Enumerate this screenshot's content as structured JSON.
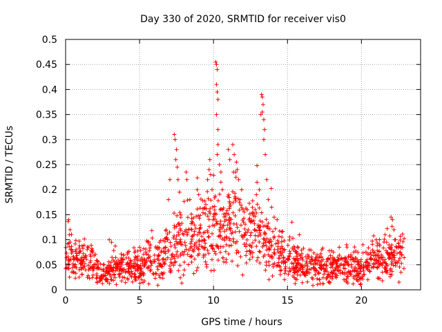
{
  "chart_data": {
    "type": "scatter",
    "title": "Day 330 of 2020, SRMTID for receiver vis0",
    "xlabel": "GPS time / hours",
    "ylabel": "SRMTID / TECUs",
    "xlim": [
      0,
      24
    ],
    "ylim": [
      0,
      0.5
    ],
    "xticks": [
      0,
      5,
      10,
      15,
      20
    ],
    "yticks": [
      0,
      0.05,
      0.1,
      0.15,
      0.2,
      0.25,
      0.3,
      0.35,
      0.4,
      0.45,
      0.5
    ],
    "grid": true,
    "marker": "+",
    "color": "#ff0000",
    "series": [
      {
        "name": "SRMTID",
        "trend": [
          [
            0.0,
            0.055
          ],
          [
            0.3,
            0.08
          ],
          [
            0.6,
            0.055
          ],
          [
            1.0,
            0.06
          ],
          [
            1.5,
            0.06
          ],
          [
            2.0,
            0.045
          ],
          [
            2.5,
            0.03
          ],
          [
            3.0,
            0.035
          ],
          [
            3.5,
            0.045
          ],
          [
            4.0,
            0.045
          ],
          [
            4.5,
            0.045
          ],
          [
            5.0,
            0.05
          ],
          [
            5.5,
            0.055
          ],
          [
            6.0,
            0.055
          ],
          [
            6.5,
            0.06
          ],
          [
            7.0,
            0.085
          ],
          [
            7.5,
            0.1
          ],
          [
            8.0,
            0.09
          ],
          [
            8.5,
            0.1
          ],
          [
            9.0,
            0.11
          ],
          [
            9.5,
            0.115
          ],
          [
            10.0,
            0.125
          ],
          [
            10.5,
            0.11
          ],
          [
            11.0,
            0.13
          ],
          [
            11.5,
            0.14
          ],
          [
            12.0,
            0.12
          ],
          [
            12.5,
            0.11
          ],
          [
            13.0,
            0.12
          ],
          [
            13.5,
            0.1
          ],
          [
            14.0,
            0.085
          ],
          [
            14.5,
            0.07
          ],
          [
            15.0,
            0.06
          ],
          [
            15.5,
            0.055
          ],
          [
            16.0,
            0.05
          ],
          [
            17.0,
            0.045
          ],
          [
            18.0,
            0.045
          ],
          [
            19.0,
            0.045
          ],
          [
            20.0,
            0.045
          ],
          [
            20.5,
            0.05
          ],
          [
            21.0,
            0.06
          ],
          [
            21.5,
            0.065
          ],
          [
            22.0,
            0.06
          ],
          [
            22.9,
            0.065
          ]
        ],
        "spikes": [
          [
            0.2,
            0.14
          ],
          [
            0.3,
            0.12
          ],
          [
            0.25,
            0.11
          ],
          [
            2.95,
            0.1
          ],
          [
            3.1,
            0.095
          ],
          [
            4.2,
            0.075
          ],
          [
            5.0,
            0.085
          ],
          [
            6.8,
            0.12
          ],
          [
            6.95,
            0.18
          ],
          [
            7.05,
            0.22
          ],
          [
            7.35,
            0.31
          ],
          [
            7.4,
            0.3
          ],
          [
            7.5,
            0.28
          ],
          [
            7.45,
            0.26
          ],
          [
            7.55,
            0.245
          ],
          [
            7.6,
            0.22
          ],
          [
            7.7,
            0.195
          ],
          [
            8.15,
            0.235
          ],
          [
            8.2,
            0.22
          ],
          [
            8.4,
            0.18
          ],
          [
            8.9,
            0.2
          ],
          [
            9.0,
            0.19
          ],
          [
            9.6,
            0.22
          ],
          [
            9.7,
            0.24
          ],
          [
            9.75,
            0.26
          ],
          [
            9.8,
            0.23
          ],
          [
            9.9,
            0.2
          ],
          [
            10.15,
            0.455
          ],
          [
            10.2,
            0.45
          ],
          [
            10.25,
            0.44
          ],
          [
            10.2,
            0.41
          ],
          [
            10.25,
            0.395
          ],
          [
            10.3,
            0.38
          ],
          [
            10.2,
            0.35
          ],
          [
            10.3,
            0.32
          ],
          [
            10.3,
            0.29
          ],
          [
            10.25,
            0.27
          ],
          [
            10.4,
            0.25
          ],
          [
            10.5,
            0.235
          ],
          [
            10.5,
            0.215
          ],
          [
            10.6,
            0.2
          ],
          [
            11.0,
            0.28
          ],
          [
            11.1,
            0.26
          ],
          [
            11.3,
            0.29
          ],
          [
            11.4,
            0.27
          ],
          [
            11.55,
            0.255
          ],
          [
            11.6,
            0.24
          ],
          [
            11.7,
            0.22
          ],
          [
            11.9,
            0.2
          ],
          [
            11.35,
            0.235
          ],
          [
            11.8,
            0.18
          ],
          [
            12.9,
            0.19
          ],
          [
            13.1,
            0.2
          ],
          [
            13.2,
            0.35
          ],
          [
            13.25,
            0.39
          ],
          [
            13.3,
            0.385
          ],
          [
            13.35,
            0.37
          ],
          [
            13.3,
            0.355
          ],
          [
            13.4,
            0.34
          ],
          [
            13.45,
            0.32
          ],
          [
            13.4,
            0.3
          ],
          [
            13.5,
            0.27
          ],
          [
            13.6,
            0.22
          ],
          [
            13.7,
            0.18
          ],
          [
            14.1,
            0.145
          ],
          [
            14.3,
            0.14
          ],
          [
            15.3,
            0.135
          ],
          [
            15.8,
            0.11
          ],
          [
            17.0,
            0.07
          ],
          [
            18.5,
            0.085
          ],
          [
            19.0,
            0.09
          ],
          [
            20.1,
            0.09
          ],
          [
            21.0,
            0.1
          ],
          [
            21.6,
            0.11
          ],
          [
            21.7,
            0.095
          ],
          [
            22.0,
            0.145
          ],
          [
            22.1,
            0.14
          ],
          [
            22.2,
            0.12
          ],
          [
            22.3,
            0.1
          ]
        ]
      }
    ]
  }
}
